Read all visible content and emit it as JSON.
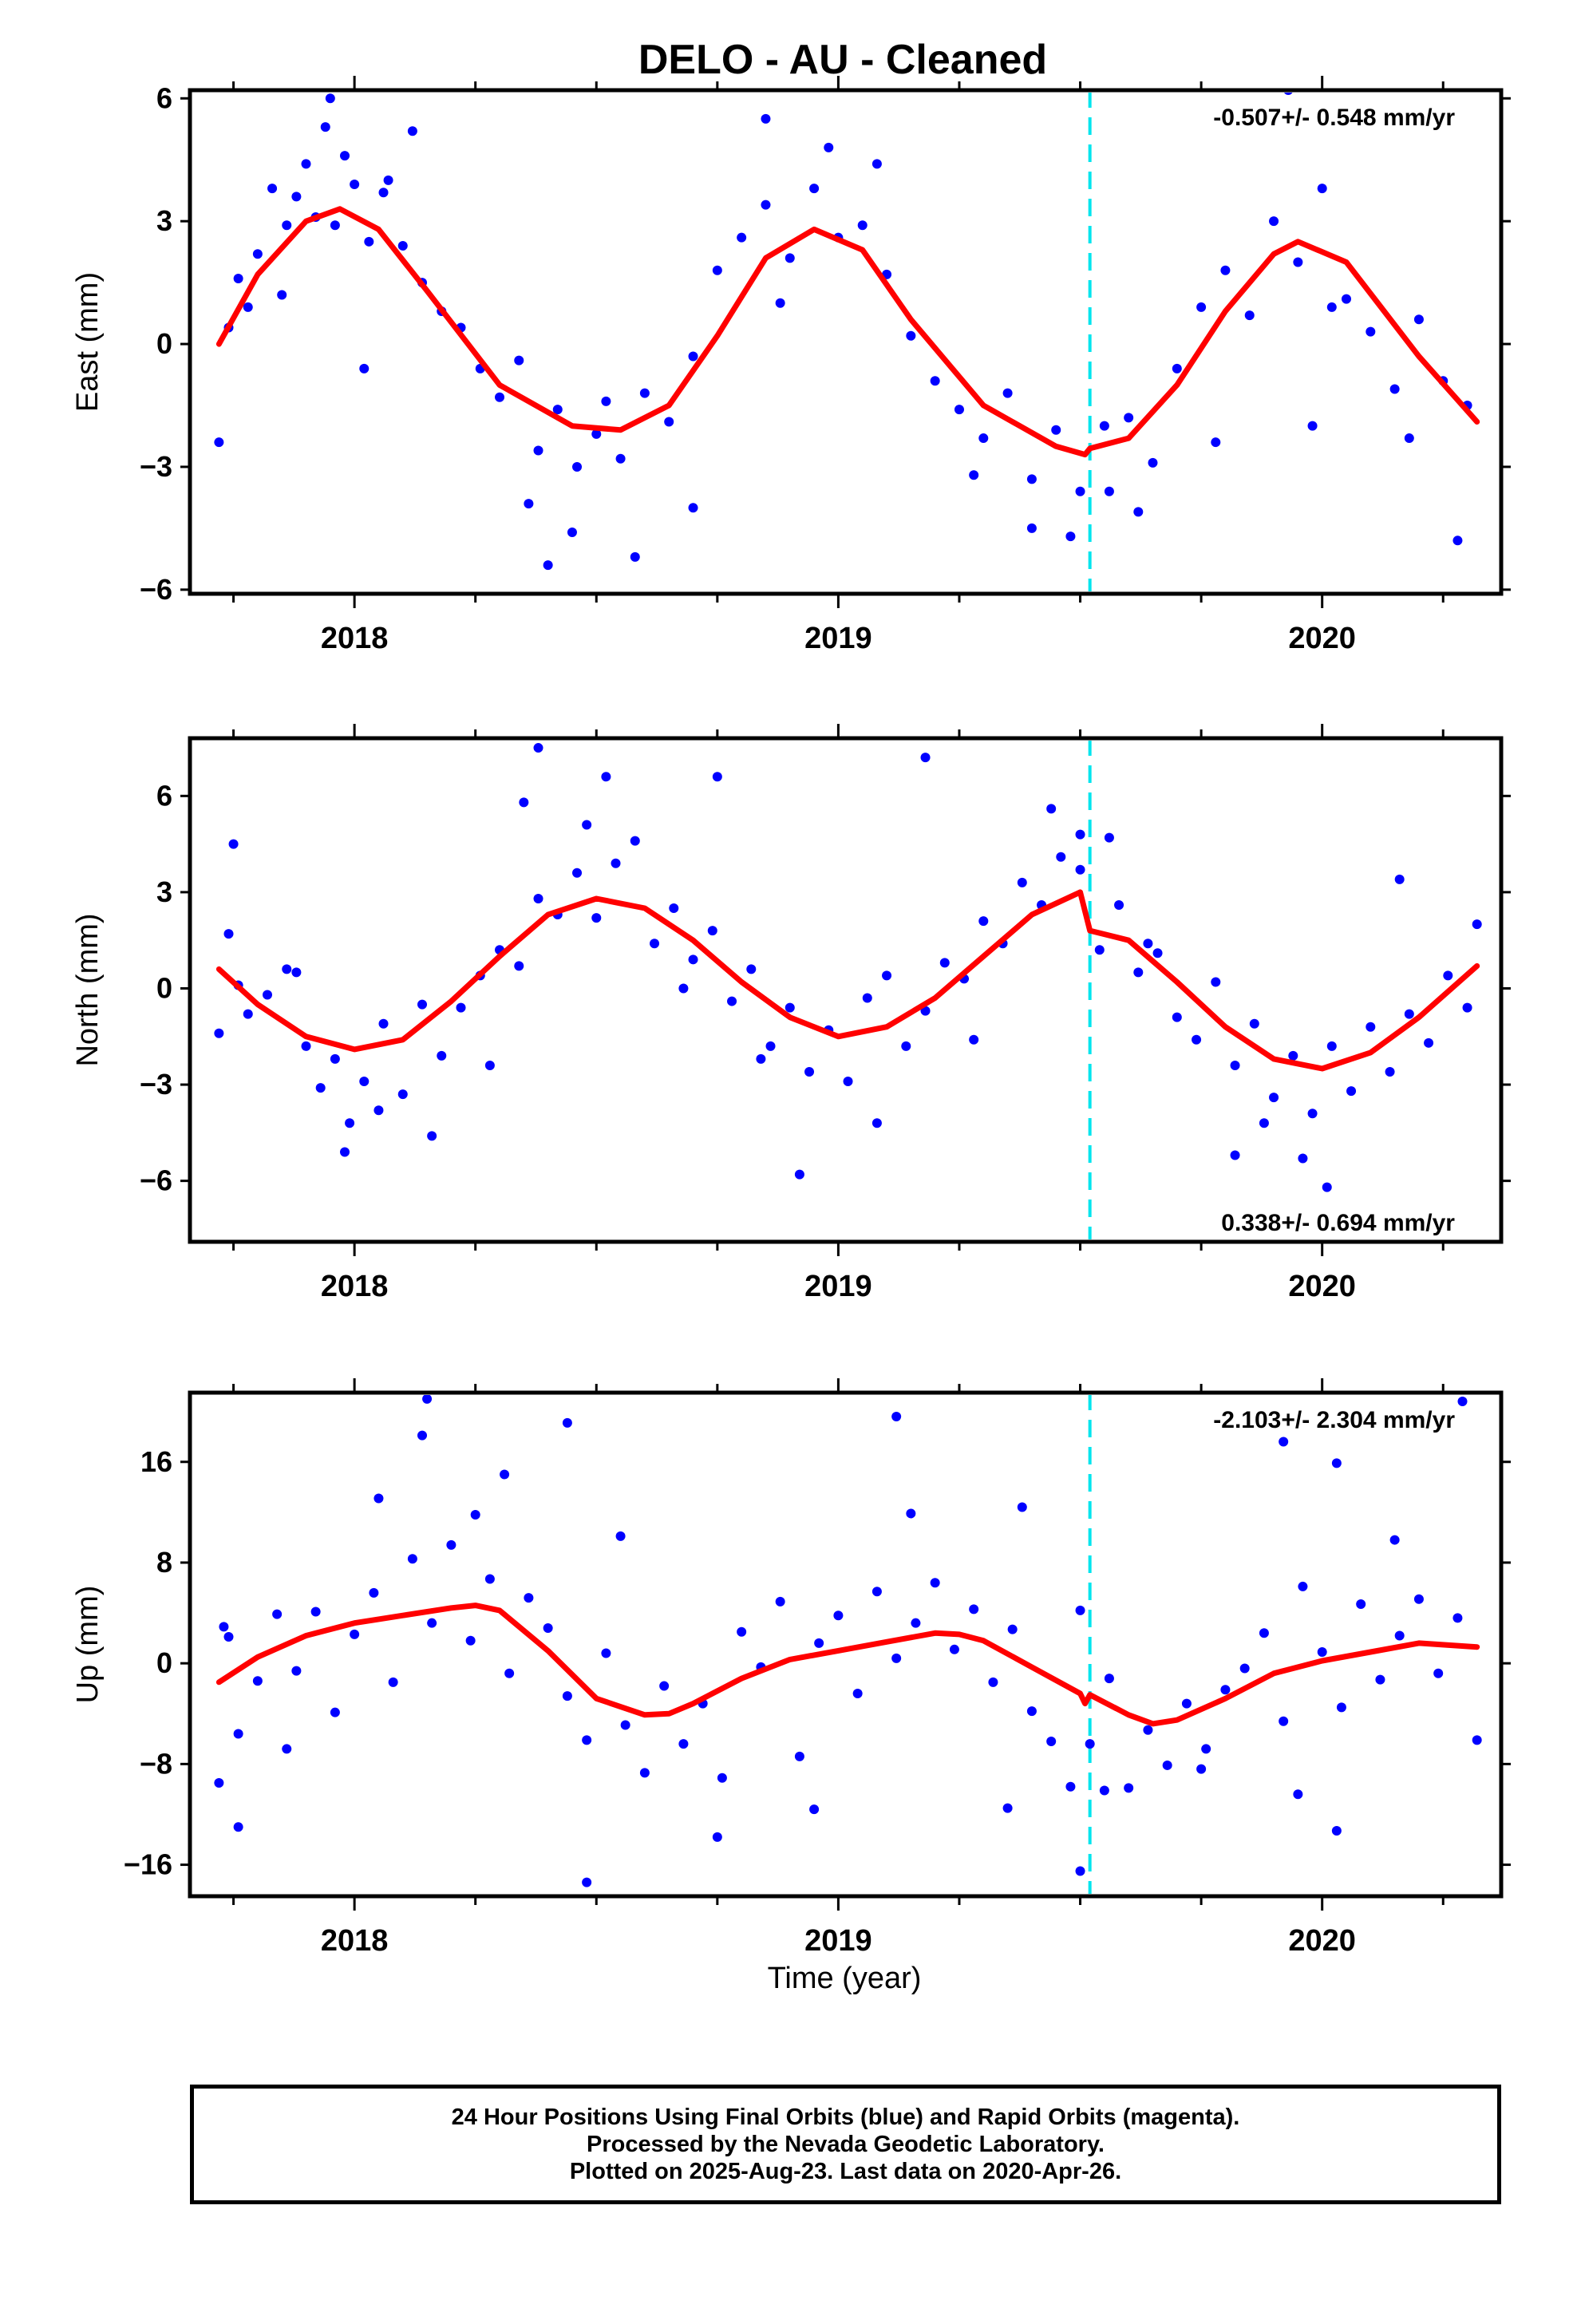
{
  "figure": {
    "title": "DELO  - AU - Cleaned",
    "xlabel": "Time (year)",
    "footer": {
      "line1": "24 Hour Positions Using Final Orbits (blue) and Rapid Orbits (magenta).",
      "line2": "Processed by the Nevada Geodetic Laboratory.",
      "line3": "Plotted on 2025-Aug-23. Last data on 2020-Apr-26."
    }
  },
  "colors": {
    "points": "#0000ff",
    "fit": "#ff0000",
    "event": "#00e5ee"
  },
  "chart_data": [
    {
      "type": "scatter",
      "ylabel": "East (mm)",
      "rate_label": "-0.507+/- 0.548 mm/yr",
      "rate_position": "top-right",
      "xlim": [
        2017.66,
        2020.37
      ],
      "ylim": [
        -6.1,
        6.2
      ],
      "yticks": [
        6,
        3,
        0,
        -3,
        -6
      ],
      "ytick_labels": [
        "6",
        "3",
        "0",
        "−3",
        "−6"
      ],
      "xticks": [
        2018,
        2019,
        2020
      ],
      "xtick_labels": [
        "2018",
        "2019",
        "2020"
      ],
      "event_x": 2019.52,
      "fit": {
        "x": [
          2017.72,
          2017.8,
          2017.9,
          2017.97,
          2018.05,
          2018.15,
          2018.3,
          2018.45,
          2018.55,
          2018.65,
          2018.75,
          2018.85,
          2018.95,
          2019.05,
          2019.15,
          2019.3,
          2019.45,
          2019.51,
          2019.52,
          2019.6,
          2019.7,
          2019.8,
          2019.9,
          2019.95,
          2020.05,
          2020.2,
          2020.32
        ],
        "y": [
          0,
          1.7,
          3.0,
          3.3,
          2.8,
          1.3,
          -1.0,
          -2.0,
          -2.1,
          -1.5,
          0.2,
          2.1,
          2.8,
          2.3,
          0.6,
          -1.5,
          -2.5,
          -2.7,
          -2.55,
          -2.3,
          -1.0,
          0.8,
          2.2,
          2.5,
          2.0,
          -0.3,
          -1.9
        ]
      },
      "points": {
        "x": [
          2017.72,
          2017.74,
          2017.76,
          2017.78,
          2017.8,
          2017.83,
          2017.86,
          2017.88,
          2017.9,
          2017.92,
          2017.94,
          2017.96,
          2017.98,
          2018.0,
          2018.03,
          2018.06,
          2018.1,
          2018.14,
          2018.18,
          2018.22,
          2018.26,
          2018.3,
          2018.34,
          2018.38,
          2018.42,
          2018.46,
          2018.5,
          2018.55,
          2018.6,
          2018.65,
          2018.7,
          2018.75,
          2018.8,
          2018.85,
          2018.9,
          2018.95,
          2019.0,
          2019.05,
          2019.1,
          2019.15,
          2019.2,
          2019.25,
          2019.3,
          2019.35,
          2019.4,
          2019.45,
          2019.5,
          2019.55,
          2019.6,
          2019.65,
          2019.7,
          2019.75,
          2019.8,
          2019.85,
          2019.9,
          2019.95,
          2020.0,
          2020.05,
          2020.1,
          2020.15,
          2020.2,
          2020.25,
          2020.3,
          2017.95,
          2018.02,
          2018.07,
          2018.4,
          2018.45,
          2018.58,
          2018.85,
          2018.98,
          2019.4,
          2019.48,
          2019.62,
          2019.93,
          2020.02,
          2020.28,
          2017.85,
          2018.12,
          2018.36,
          2018.52,
          2018.7,
          2018.88,
          2019.08,
          2019.28,
          2019.56,
          2019.78,
          2019.98,
          2020.18
        ],
        "y": [
          -2.4,
          0.4,
          1.6,
          0.9,
          2.2,
          3.8,
          2.9,
          3.6,
          4.4,
          3.1,
          5.3,
          2.9,
          4.6,
          3.9,
          2.5,
          3.7,
          2.4,
          1.5,
          0.8,
          0.4,
          -0.6,
          -1.3,
          -0.4,
          -2.6,
          -1.6,
          -3.0,
          -2.2,
          -2.8,
          -1.2,
          -1.9,
          -0.3,
          1.8,
          2.6,
          3.4,
          2.1,
          3.8,
          2.6,
          2.9,
          1.7,
          0.2,
          -0.9,
          -1.6,
          -2.3,
          -1.2,
          -3.3,
          -2.1,
          -3.6,
          -2.0,
          -1.8,
          -2.9,
          -0.6,
          0.9,
          1.8,
          0.7,
          3.0,
          2.0,
          3.8,
          1.1,
          0.3,
          -1.1,
          0.6,
          -0.9,
          -1.5,
          6.0,
          -0.6,
          4.0,
          -5.4,
          -4.6,
          -5.2,
          5.5,
          4.8,
          -4.5,
          -4.7,
          -4.1,
          6.2,
          0.9,
          -4.8,
          1.2,
          5.2,
          -3.9,
          -1.4,
          -4.0,
          1.0,
          4.4,
          -3.2,
          -3.6,
          -2.4,
          -2.0,
          -2.3
        ]
      }
    },
    {
      "type": "scatter",
      "ylabel": "North (mm)",
      "rate_label": "0.338+/- 0.694 mm/yr",
      "rate_position": "bottom-right",
      "xlim": [
        2017.66,
        2020.37
      ],
      "ylim": [
        -7.9,
        7.8
      ],
      "yticks": [
        6,
        3,
        0,
        -3,
        -6
      ],
      "ytick_labels": [
        "6",
        "3",
        "0",
        "−3",
        "−6"
      ],
      "xticks": [
        2018,
        2019,
        2020
      ],
      "xtick_labels": [
        "2018",
        "2019",
        "2020"
      ],
      "event_x": 2019.52,
      "fit": {
        "x": [
          2017.72,
          2017.8,
          2017.9,
          2018.0,
          2018.1,
          2018.2,
          2018.3,
          2018.4,
          2018.5,
          2018.6,
          2018.7,
          2018.8,
          2018.9,
          2019.0,
          2019.1,
          2019.2,
          2019.3,
          2019.4,
          2019.5,
          2019.52,
          2019.6,
          2019.7,
          2019.8,
          2019.9,
          2020.0,
          2020.1,
          2020.2,
          2020.32
        ],
        "y": [
          0.6,
          -0.5,
          -1.5,
          -1.9,
          -1.6,
          -0.4,
          1.0,
          2.3,
          2.8,
          2.5,
          1.5,
          0.2,
          -0.9,
          -1.5,
          -1.2,
          -0.3,
          1.0,
          2.3,
          3.0,
          1.8,
          1.5,
          0.2,
          -1.2,
          -2.2,
          -2.5,
          -2.0,
          -0.9,
          0.7
        ]
      },
      "points": {
        "x": [
          2017.72,
          2017.74,
          2017.76,
          2017.78,
          2017.82,
          2017.86,
          2017.9,
          2017.93,
          2017.96,
          2017.99,
          2018.02,
          2018.06,
          2018.1,
          2018.14,
          2018.18,
          2018.22,
          2018.26,
          2018.3,
          2018.34,
          2018.38,
          2018.42,
          2018.46,
          2018.5,
          2018.54,
          2018.58,
          2018.62,
          2018.66,
          2018.7,
          2018.74,
          2018.78,
          2018.82,
          2018.86,
          2018.9,
          2018.94,
          2018.98,
          2019.02,
          2019.06,
          2019.1,
          2019.14,
          2019.18,
          2019.22,
          2019.26,
          2019.3,
          2019.34,
          2019.38,
          2019.42,
          2019.46,
          2019.5,
          2019.54,
          2019.58,
          2019.62,
          2019.66,
          2019.7,
          2019.74,
          2019.78,
          2019.82,
          2019.86,
          2019.9,
          2019.94,
          2019.98,
          2020.02,
          2020.06,
          2020.1,
          2020.14,
          2020.18,
          2020.22,
          2020.26,
          2020.3,
          2017.75,
          2017.98,
          2018.16,
          2018.35,
          2018.38,
          2018.52,
          2018.75,
          2018.92,
          2019.18,
          2019.44,
          2019.5,
          2019.56,
          2019.82,
          2019.96,
          2020.01,
          2020.32,
          2017.88,
          2018.05,
          2018.28,
          2018.48,
          2018.68,
          2018.84,
          2019.08,
          2019.28,
          2019.64,
          2019.88,
          2020.16
        ],
        "y": [
          -1.4,
          1.7,
          0.1,
          -0.8,
          -0.2,
          0.6,
          -1.8,
          -3.1,
          -2.2,
          -4.2,
          -2.9,
          -1.1,
          -3.3,
          -0.5,
          -2.1,
          -0.6,
          0.4,
          1.2,
          0.7,
          2.8,
          2.3,
          3.6,
          2.2,
          3.9,
          4.6,
          1.4,
          2.5,
          0.9,
          1.8,
          -0.4,
          0.6,
          -1.8,
          -0.6,
          -2.6,
          -1.3,
          -2.9,
          -0.3,
          0.4,
          -1.8,
          -0.7,
          0.8,
          0.3,
          2.1,
          1.4,
          3.3,
          2.6,
          4.1,
          3.7,
          1.2,
          2.6,
          0.5,
          1.1,
          -0.9,
          -1.6,
          0.2,
          -2.4,
          -1.1,
          -3.4,
          -2.1,
          -3.9,
          -1.8,
          -3.2,
          -1.2,
          -2.6,
          -0.8,
          -1.7,
          0.4,
          -0.6,
          4.5,
          -5.1,
          -4.6,
          5.8,
          7.5,
          6.6,
          6.6,
          -5.8,
          7.2,
          5.6,
          4.8,
          4.7,
          -5.2,
          -5.3,
          -6.2,
          2.0,
          0.5,
          -3.8,
          -2.4,
          5.1,
          0.0,
          -2.2,
          -4.2,
          -1.6,
          1.4,
          -4.2,
          3.4
        ]
      }
    },
    {
      "type": "scatter",
      "ylabel": "Up (mm)",
      "rate_label": "-2.103+/- 2.304 mm/yr",
      "rate_position": "top-right",
      "xlim": [
        2017.66,
        2020.37
      ],
      "ylim": [
        -18.5,
        21.5
      ],
      "yticks": [
        16,
        8,
        0,
        -8,
        -16
      ],
      "ytick_labels": [
        "16",
        "8",
        "0",
        "−8",
        "−16"
      ],
      "xticks": [
        2018,
        2019,
        2020
      ],
      "xtick_labels": [
        "2018",
        "2019",
        "2020"
      ],
      "event_x": 2019.52,
      "fit": {
        "x": [
          2017.72,
          2017.8,
          2017.9,
          2018.0,
          2018.1,
          2018.2,
          2018.25,
          2018.3,
          2018.4,
          2018.5,
          2018.6,
          2018.65,
          2018.7,
          2018.8,
          2018.9,
          2019.0,
          2019.1,
          2019.2,
          2019.25,
          2019.3,
          2019.4,
          2019.5,
          2019.51,
          2019.52,
          2019.6,
          2019.65,
          2019.7,
          2019.8,
          2019.9,
          2020.0,
          2020.1,
          2020.2,
          2020.32
        ],
        "y": [
          -1.5,
          0.5,
          2.2,
          3.2,
          3.8,
          4.4,
          4.6,
          4.2,
          1.0,
          -2.8,
          -4.1,
          -4.0,
          -3.2,
          -1.2,
          0.3,
          1.0,
          1.7,
          2.4,
          2.3,
          1.8,
          -0.3,
          -2.4,
          -3.2,
          -2.5,
          -4.1,
          -4.8,
          -4.5,
          -2.8,
          -0.8,
          0.2,
          0.9,
          1.6,
          1.3
        ]
      },
      "points": {
        "x": [
          2017.72,
          2017.74,
          2017.76,
          2017.8,
          2017.84,
          2017.88,
          2017.92,
          2017.96,
          2018.0,
          2018.04,
          2018.08,
          2018.12,
          2018.16,
          2018.2,
          2018.24,
          2018.28,
          2018.32,
          2018.36,
          2018.4,
          2018.44,
          2018.48,
          2018.52,
          2018.56,
          2018.6,
          2018.64,
          2018.68,
          2018.72,
          2018.76,
          2018.8,
          2018.84,
          2018.88,
          2018.92,
          2018.96,
          2019.0,
          2019.04,
          2019.08,
          2019.12,
          2019.16,
          2019.2,
          2019.24,
          2019.28,
          2019.32,
          2019.36,
          2019.4,
          2019.44,
          2019.48,
          2019.52,
          2019.56,
          2019.6,
          2019.64,
          2019.68,
          2019.72,
          2019.76,
          2019.8,
          2019.84,
          2019.88,
          2019.92,
          2019.96,
          2020.0,
          2020.04,
          2020.08,
          2020.12,
          2020.16,
          2020.2,
          2020.24,
          2020.28,
          2020.32,
          2017.73,
          2017.76,
          2018.14,
          2018.15,
          2018.31,
          2018.44,
          2018.48,
          2019.12,
          2019.38,
          2019.5,
          2019.5,
          2019.92,
          2020.03,
          2020.03,
          2020.29,
          2017.86,
          2018.05,
          2018.25,
          2018.55,
          2018.75,
          2018.95,
          2019.15,
          2019.35,
          2019.55,
          2019.75,
          2019.95,
          2020.15
        ],
        "y": [
          -9.5,
          2.1,
          -5.6,
          -1.4,
          3.9,
          -0.6,
          4.1,
          -3.9,
          2.3,
          5.6,
          -1.5,
          8.3,
          3.2,
          9.4,
          1.8,
          6.7,
          -0.8,
          5.2,
          2.8,
          -2.6,
          -6.1,
          0.8,
          -4.9,
          -8.7,
          -1.8,
          -6.4,
          -3.2,
          -9.1,
          2.5,
          -0.3,
          4.9,
          -7.4,
          1.6,
          3.8,
          -2.4,
          5.7,
          0.4,
          3.2,
          6.4,
          1.1,
          4.3,
          -1.5,
          2.7,
          -3.8,
          -6.2,
          -9.8,
          -6.4,
          -1.2,
          -9.9,
          -5.3,
          -8.1,
          -3.2,
          -6.8,
          -2.1,
          -0.4,
          2.4,
          -4.6,
          6.1,
          0.9,
          -3.5,
          4.7,
          -1.3,
          2.2,
          5.1,
          -0.8,
          3.6,
          -6.1,
          2.9,
          -13.0,
          18.1,
          21.0,
          15.0,
          19.1,
          -17.4,
          19.6,
          12.4,
          -16.5,
          4.2,
          17.6,
          -13.3,
          15.9,
          20.8,
          -6.8,
          13.1,
          11.8,
          10.1,
          -13.8,
          -11.6,
          11.9,
          -11.5,
          -10.1,
          -8.4,
          -10.4,
          9.8
        ]
      }
    }
  ]
}
